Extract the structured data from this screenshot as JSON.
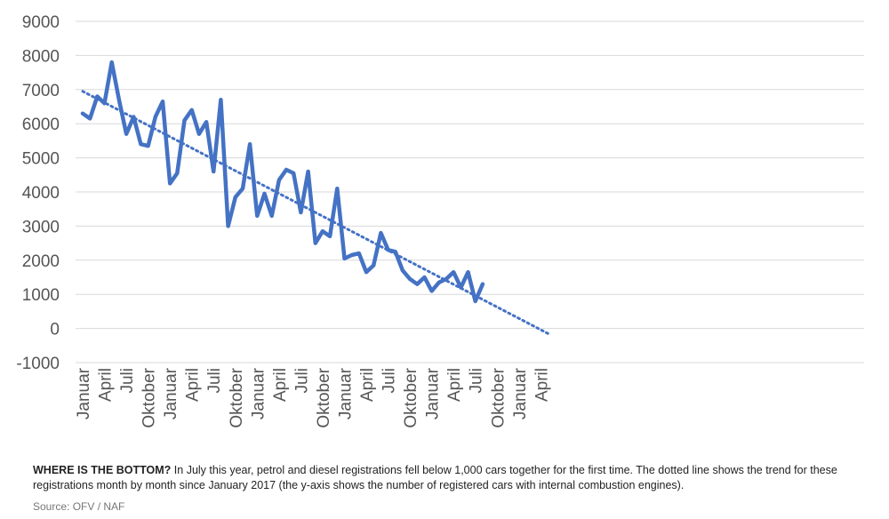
{
  "caption": {
    "lead": "WHERE IS THE BOTTOM?",
    "text": " In July this year, petrol and diesel registrations fell below 1,000 cars together for the first time. The dotted line shows the trend for these registrations month by month since January 2017 (the y-axis shows the number of registered cars with internal combustion engines).",
    "source": "Source: OFV / NAF"
  },
  "chart_data": {
    "type": "line",
    "title": "",
    "xlabel": "",
    "ylabel": "",
    "ylim": [
      -1000,
      9000
    ],
    "yticks": [
      9000,
      8000,
      7000,
      6000,
      5000,
      4000,
      3000,
      2000,
      1000,
      0,
      -1000
    ],
    "grid": true,
    "legend": "none",
    "x_tick_labels": [
      "Januar",
      "April",
      "Juli",
      "Oktober",
      "Januar",
      "April",
      "Juli",
      "Oktober",
      "Januar",
      "April",
      "Juli",
      "Oktober",
      "Januar",
      "April",
      "Juli",
      "Oktober",
      "Januar",
      "April",
      "Juli",
      "Oktober",
      "Januar",
      "April"
    ],
    "series": [
      {
        "style": "solid",
        "color": "#4472C4",
        "values": [
          6300,
          6150,
          6800,
          6600,
          7800,
          6700,
          5700,
          6200,
          5400,
          5350,
          6200,
          6650,
          4250,
          4550,
          6100,
          6400,
          5700,
          6050,
          4600,
          6700,
          3000,
          3850,
          4100,
          5400,
          3300,
          3950,
          3300,
          4350,
          4650,
          4550,
          3400,
          4600,
          2500,
          2850,
          2700,
          4100,
          2050,
          2150,
          2200,
          1650,
          1850,
          2800,
          2300,
          2250,
          1700,
          1450,
          1300,
          1500,
          1100,
          1350,
          1450,
          1650,
          1200,
          1650,
          800,
          1300
        ]
      },
      {
        "style": "dotted",
        "color": "#4472C4",
        "trend_start": 6950,
        "trend_end": -150
      }
    ]
  }
}
